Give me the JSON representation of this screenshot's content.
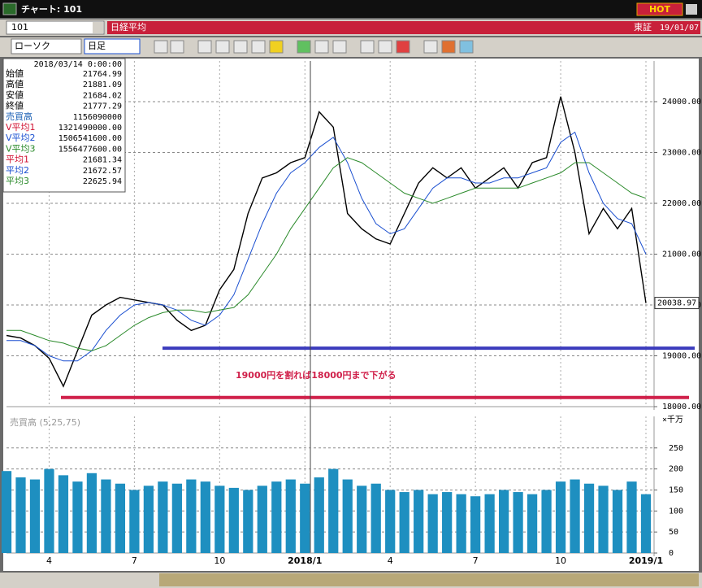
{
  "window": {
    "title": "チャート: 101",
    "hot": "HOT"
  },
  "toolbar": {
    "code": "101",
    "name": "日経平均",
    "exchange": "東証",
    "date": "19/01/07",
    "chart_style": "ローソク",
    "period": "日足"
  },
  "info_panel": {
    "datetime": "2018/03/14 0:00:00",
    "rows": [
      [
        "始値",
        "21764.99"
      ],
      [
        "高値",
        "21881.09"
      ],
      [
        "安値",
        "21684.02"
      ],
      [
        "終値",
        "21777.29"
      ],
      [
        "売買高",
        "1156090000"
      ],
      [
        "V平均1",
        "1321490000.00"
      ],
      [
        "V平均2",
        "1506541600.00"
      ],
      [
        "V平均3",
        "1556477600.00"
      ],
      [
        "平均1",
        "21681.34"
      ],
      [
        "平均2",
        "21672.57"
      ],
      [
        "平均3",
        "22625.94"
      ]
    ],
    "colors": [
      "#000000",
      "#000000",
      "#000000",
      "#000000",
      "#1a5fb4",
      "#d01030",
      "#1a4fd0",
      "#2a8a2a",
      "#d01030",
      "#1a4fd0",
      "#2a8a2a"
    ]
  },
  "chart_data": [
    {
      "type": "line",
      "annotation": "19000円を割れば18000円まで下がる",
      "ylim": [
        18000,
        24800
      ],
      "yticks": [
        {
          "value": 18000,
          "label": "18000.00"
        },
        {
          "value": 19000,
          "label": "19000.00"
        },
        {
          "value": 20000,
          "label": "20000.00"
        },
        {
          "value": 21000,
          "label": "21000.00"
        },
        {
          "value": 22000,
          "label": "22000.00"
        },
        {
          "value": 23000,
          "label": "23000.00"
        },
        {
          "value": 24000,
          "label": "24000.00"
        }
      ],
      "grid": true,
      "hlines": [
        {
          "value": 19150,
          "color": "#3b3bbd"
        },
        {
          "value": 18180,
          "color": "#d0204a"
        }
      ],
      "series": [
        {
          "color": "#000000",
          "values": [
            19400,
            19350,
            19200,
            18950,
            18400,
            19100,
            19800,
            20000,
            20150,
            20100,
            20050,
            20000,
            19700,
            19500,
            19600,
            20300,
            20700,
            21800,
            22500,
            22600,
            22800,
            22900,
            23800,
            23500,
            21800,
            21500,
            21300,
            21200,
            21800,
            22400,
            22700,
            22500,
            22700,
            22300,
            22500,
            22700,
            22300,
            22800,
            22900,
            24100,
            23000,
            21400,
            21900,
            21500,
            21900,
            20038.97
          ]
        },
        {
          "color": "#1a4fd0",
          "values": [
            19300,
            19300,
            19200,
            19000,
            18900,
            18900,
            19100,
            19500,
            19800,
            20000,
            20050,
            20000,
            19900,
            19700,
            19600,
            19800,
            20200,
            20900,
            21600,
            22200,
            22600,
            22800,
            23100,
            23300,
            22800,
            22100,
            21600,
            21400,
            21500,
            21900,
            22300,
            22500,
            22500,
            22400,
            22400,
            22500,
            22500,
            22600,
            22700,
            23200,
            23400,
            22600,
            22000,
            21700,
            21600,
            21000
          ]
        },
        {
          "color": "#2a8a2a",
          "values": [
            19500,
            19500,
            19400,
            19300,
            19250,
            19150,
            19100,
            19200,
            19400,
            19600,
            19750,
            19850,
            19900,
            19900,
            19850,
            19900,
            19950,
            20200,
            20600,
            21000,
            21500,
            21900,
            22300,
            22700,
            22900,
            22800,
            22600,
            22400,
            22200,
            22100,
            22000,
            22100,
            22200,
            22300,
            22300,
            22300,
            22300,
            22400,
            22500,
            22600,
            22800,
            22800,
            22600,
            22400,
            22200,
            22100
          ]
        }
      ]
    },
    {
      "type": "bar",
      "title": "売買高 (5,25,75)",
      "unit": "×千万",
      "color": "#1e8fc0",
      "ylim": [
        0,
        325
      ],
      "yticks": [
        0,
        50,
        100,
        150,
        200,
        250
      ],
      "categories": [
        null,
        null,
        null,
        "4",
        null,
        null,
        null,
        null,
        null,
        "7",
        null,
        null,
        null,
        null,
        null,
        "10",
        null,
        null,
        null,
        null,
        null,
        "2018/1",
        null,
        null,
        null,
        null,
        null,
        "4",
        null,
        null,
        null,
        null,
        null,
        "7",
        null,
        null,
        null,
        null,
        null,
        "10",
        null,
        null,
        null,
        null,
        null,
        "2019/1"
      ],
      "values": [
        195,
        180,
        175,
        200,
        185,
        170,
        190,
        175,
        165,
        150,
        160,
        170,
        165,
        175,
        170,
        160,
        155,
        150,
        160,
        170,
        175,
        165,
        180,
        200,
        175,
        160,
        165,
        150,
        145,
        150,
        140,
        145,
        140,
        135,
        140,
        150,
        145,
        140,
        150,
        170,
        175,
        165,
        160,
        150,
        170,
        140
      ]
    }
  ]
}
